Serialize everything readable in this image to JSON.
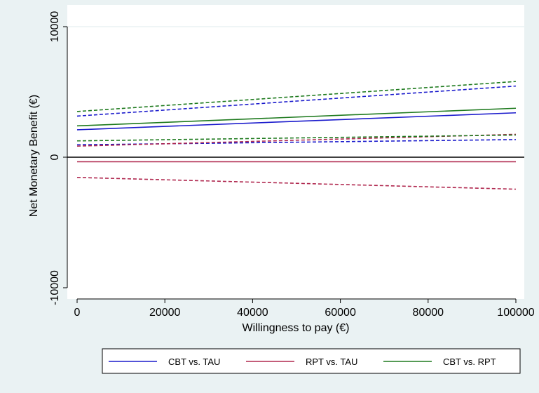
{
  "chart_data": {
    "type": "line",
    "title": "",
    "xlabel": "Willingness to pay (€)",
    "ylabel": "Net Monetary Benefit (€)",
    "xlim": [
      0,
      100000
    ],
    "ylim": [
      -10000,
      10000
    ],
    "xticks": [
      0,
      20000,
      40000,
      60000,
      80000,
      100000
    ],
    "yticks": [
      -10000,
      0,
      10000
    ],
    "x": [
      0,
      100000
    ],
    "reference_line": 0,
    "grid": "horizontal gridline at 10000",
    "legend_position": "bottom",
    "series": [
      {
        "name": "CBT vs. TAU",
        "color": "#1a1acc",
        "style": "solid",
        "values": [
          2100,
          3400
        ]
      },
      {
        "name": "",
        "color": "#1a1acc",
        "style": "dashed",
        "values": [
          3150,
          5450
        ]
      },
      {
        "name": "",
        "color": "#1a1acc",
        "style": "dashed",
        "values": [
          950,
          1350
        ]
      },
      {
        "name": "RPT vs. TAU",
        "color": "#b0284f",
        "style": "solid",
        "values": [
          -350,
          -350
        ]
      },
      {
        "name": "",
        "color": "#b0284f",
        "style": "dashed",
        "values": [
          -1550,
          -2450
        ]
      },
      {
        "name": "",
        "color": "#b0284f",
        "style": "dashed",
        "values": [
          850,
          1750
        ]
      },
      {
        "name": "CBT vs. RPT",
        "color": "#1e7a1e",
        "style": "solid",
        "values": [
          2400,
          3750
        ]
      },
      {
        "name": "",
        "color": "#1e7a1e",
        "style": "dashed",
        "values": [
          3500,
          5800
        ]
      },
      {
        "name": "",
        "color": "#1e7a1e",
        "style": "dashed",
        "values": [
          1250,
          1700
        ]
      }
    ],
    "legend": [
      {
        "label": "CBT vs. TAU",
        "color": "#1a1acc"
      },
      {
        "label": "RPT vs. TAU",
        "color": "#b0284f"
      },
      {
        "label": "CBT vs. RPT",
        "color": "#1e7a1e"
      }
    ]
  }
}
